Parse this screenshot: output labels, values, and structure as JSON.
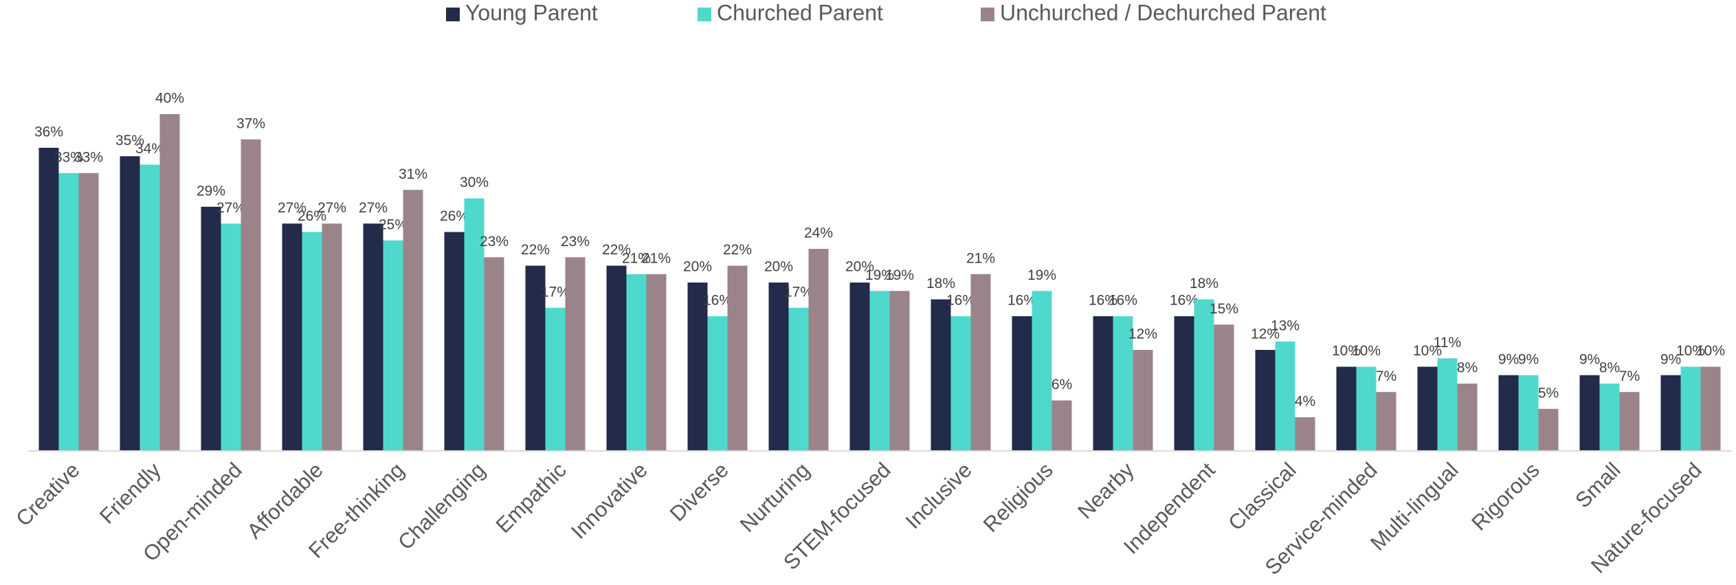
{
  "chart_data": {
    "type": "bar",
    "categories": [
      "Creative",
      "Friendly",
      "Open-minded",
      "Affordable",
      "Free-thinking",
      "Challenging",
      "Empathic",
      "Innovative",
      "Diverse",
      "Nurturing",
      "STEM-focused",
      "Inclusive",
      "Religious",
      "Nearby",
      "Independent",
      "Classical",
      "Service-minded",
      "Multi-lingual",
      "Rigorous",
      "Small",
      "Nature-focused"
    ],
    "series": [
      {
        "name": "Young Parent",
        "color": "#222b4a",
        "values": [
          36,
          35,
          29,
          27,
          27,
          26,
          22,
          22,
          20,
          20,
          20,
          18,
          16,
          16,
          16,
          12,
          10,
          10,
          9,
          9,
          9
        ],
        "value_labels": [
          "36%",
          "35%",
          "29%",
          "27%",
          "27%",
          "26%",
          "22%",
          "22%",
          "20%",
          "20%",
          "20%",
          "18%",
          "16%",
          "16%",
          "16%",
          "12%",
          "10%",
          "10%",
          "9%",
          "9%",
          "9%"
        ]
      },
      {
        "name": "Churched Parent",
        "color": "#4fd9cc",
        "values": [
          33,
          34,
          27,
          26,
          25,
          30,
          17,
          21,
          16,
          17,
          19,
          16,
          19,
          16,
          18,
          13,
          10,
          11,
          9,
          8,
          10
        ],
        "value_labels": [
          "33%",
          "34%",
          "27%",
          "26%",
          "25%",
          "30%",
          "17%",
          "21%",
          "16%",
          "17%",
          "19%",
          "16%",
          "19%",
          "16%",
          "18%",
          "13%",
          "10%",
          "11%",
          "9%",
          "8%",
          "10%"
        ]
      },
      {
        "name": "Unchurched / Dechurched Parent",
        "color": "#9b8489",
        "values": [
          33,
          40,
          37,
          27,
          31,
          23,
          23,
          21,
          22,
          24,
          19,
          21,
          6,
          12,
          15,
          4,
          7,
          8,
          5,
          7,
          10
        ],
        "value_labels": [
          "33%",
          "40%",
          "37%",
          "27%",
          "31%",
          "23%",
          "23%",
          "21%",
          "22%",
          "24%",
          "19%",
          "21%",
          "6%",
          "12%",
          "15%",
          "4%",
          "7%",
          "8%",
          "5%",
          "7%",
          "10%"
        ]
      }
    ],
    "ylim": [
      0,
      40
    ],
    "legend": "top"
  }
}
